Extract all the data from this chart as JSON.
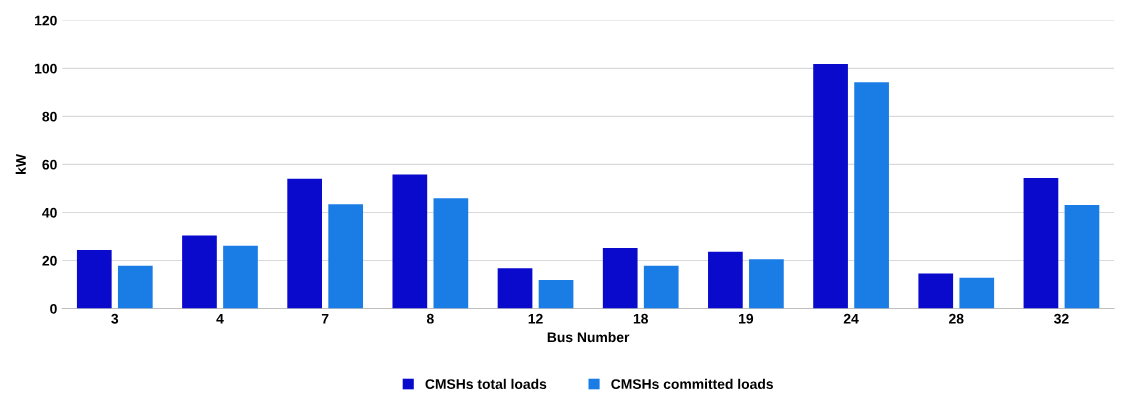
{
  "chart_data": {
    "type": "bar",
    "xlabel": "Bus Number",
    "ylabel": "kW",
    "categories": [
      "3",
      "4",
      "7",
      "8",
      "12",
      "18",
      "19",
      "24",
      "28",
      "32"
    ],
    "series": [
      {
        "name": "CMSHs total loads",
        "color": "#0a0acd",
        "values": [
          24.4,
          30.4,
          54,
          55.8,
          16.8,
          25.2,
          23.6,
          101.8,
          14.6,
          54.4
        ]
      },
      {
        "name": "CMSHs committed loads",
        "color": "#1a7de6",
        "values": [
          17.8,
          26.1,
          43.4,
          45.9,
          11.9,
          17.8,
          20.5,
          94.2,
          12.8,
          43.1
        ]
      }
    ],
    "ylim": [
      0,
      120
    ],
    "yticks": [
      0,
      20,
      40,
      60,
      80,
      100,
      120
    ],
    "grid": "y",
    "legend": "bottom"
  }
}
